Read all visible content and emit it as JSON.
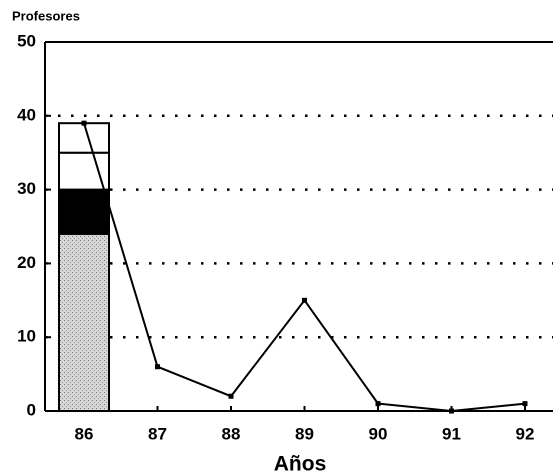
{
  "chart_data": {
    "type": "bar+line",
    "title": "Profesores",
    "xlabel": "Años",
    "categories": [
      "86",
      "87",
      "88",
      "89",
      "90",
      "91",
      "92"
    ],
    "series": [
      {
        "type": "bar",
        "color": "#c4c4c4",
        "values": [
          24,
          null,
          null,
          null,
          null,
          null,
          null
        ]
      },
      {
        "type": "bar",
        "color": "#000000",
        "values": [
          6,
          null,
          null,
          null,
          null,
          null,
          null
        ]
      },
      {
        "type": "bar",
        "color": "#ffffff",
        "values": [
          5,
          null,
          null,
          null,
          null,
          null,
          null
        ]
      },
      {
        "type": "bar",
        "color": "#ffffff",
        "values": [
          4,
          null,
          null,
          null,
          null,
          null,
          null
        ]
      },
      {
        "type": "line",
        "color": "#000000",
        "values": [
          39,
          6,
          2,
          15,
          1,
          0,
          1
        ]
      }
    ],
    "ylim": [
      0,
      50
    ],
    "yticks": [
      0,
      10,
      20,
      30,
      40,
      50
    ],
    "grid": true
  }
}
